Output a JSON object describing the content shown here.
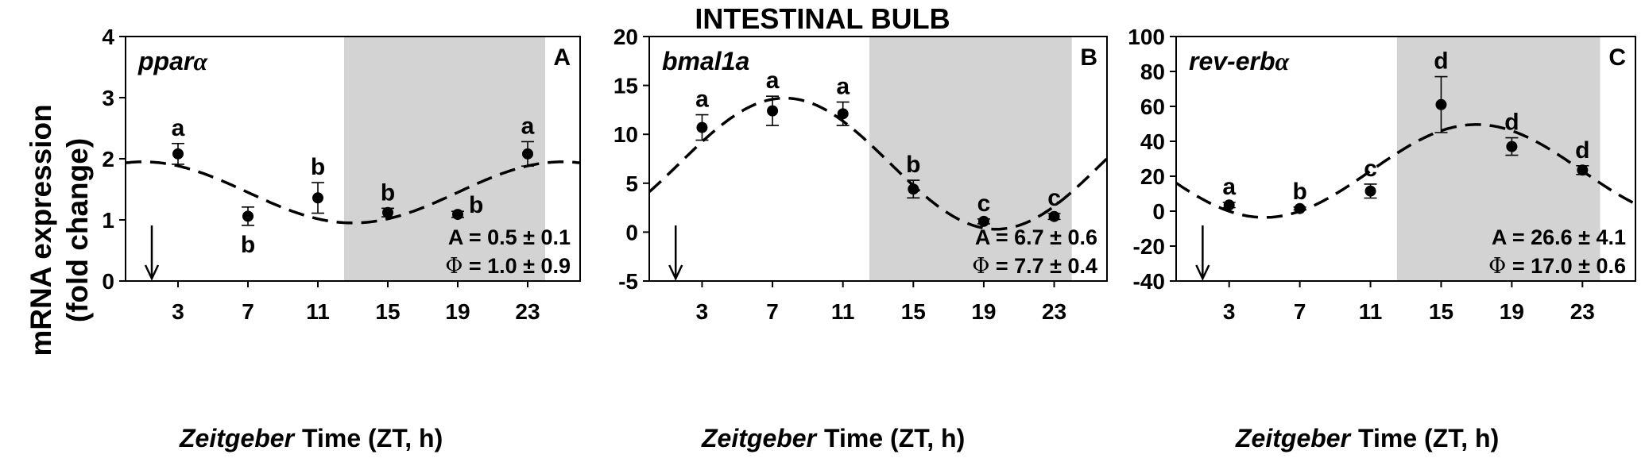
{
  "figure": {
    "suptitle": "INTESTINAL BULB",
    "ylabel_line1": "mRNA  expression",
    "ylabel_line2": "(fold  change)",
    "xlabel_italic": "Zeitgeber",
    "xlabel_rest": "Time   (ZT,   h)",
    "colors": {
      "dark_phase": "#d3d3d3",
      "marker": "#000000",
      "fit_line": "#000000"
    }
  },
  "chart_data": [
    {
      "type": "scatter",
      "panel": "A",
      "gene": "ppar",
      "gene_greek": "α",
      "ylim": [
        0,
        4
      ],
      "yticks": [
        0,
        1,
        2,
        3,
        4
      ],
      "xlim": [
        0,
        26
      ],
      "xticks": [
        3,
        7,
        11,
        15,
        19,
        23
      ],
      "dark_phase": [
        12.5,
        24
      ],
      "arrow_zt": 1.5,
      "points": [
        {
          "x": 3,
          "y": 2.08,
          "err": 0.17,
          "letter": "a",
          "letter_pos": "above"
        },
        {
          "x": 7,
          "y": 1.06,
          "err": 0.15,
          "letter": "b",
          "letter_pos": "below"
        },
        {
          "x": 11,
          "y": 1.36,
          "err": 0.25,
          "letter": "b",
          "letter_pos": "above"
        },
        {
          "x": 15,
          "y": 1.12,
          "err": 0.07,
          "letter": "b",
          "letter_pos": "above"
        },
        {
          "x": 19,
          "y": 1.09,
          "err": 0.05,
          "letter": "b",
          "letter_pos": "right"
        },
        {
          "x": 23,
          "y": 2.08,
          "err": 0.2,
          "letter": "a",
          "letter_pos": "above"
        }
      ],
      "fit": {
        "mesor": 1.45,
        "amplitude": 0.5,
        "acrophase": 1.0,
        "period": 24
      },
      "stat_amp": "A = 0.5 ± 0.1",
      "stat_phase_symbol": "Φ",
      "stat_phase_text": " = 1.0 ± 0.9"
    },
    {
      "type": "scatter",
      "panel": "B",
      "gene": "bmal1a",
      "gene_greek": "",
      "ylim": [
        -5,
        20
      ],
      "yticks": [
        -5,
        0,
        5,
        10,
        15,
        20
      ],
      "xlim": [
        0,
        26
      ],
      "xticks": [
        3,
        7,
        11,
        15,
        19,
        23
      ],
      "dark_phase": [
        12.5,
        24
      ],
      "arrow_zt": 1.5,
      "points": [
        {
          "x": 3,
          "y": 10.7,
          "err": 1.3,
          "letter": "a",
          "letter_pos": "above"
        },
        {
          "x": 7,
          "y": 12.4,
          "err": 1.5,
          "letter": "a",
          "letter_pos": "above"
        },
        {
          "x": 11,
          "y": 12.1,
          "err": 1.2,
          "letter": "a",
          "letter_pos": "above"
        },
        {
          "x": 15,
          "y": 4.4,
          "err": 0.9,
          "letter": "b",
          "letter_pos": "above"
        },
        {
          "x": 19,
          "y": 1.1,
          "err": 0.25,
          "letter": "c",
          "letter_pos": "above"
        },
        {
          "x": 23,
          "y": 1.6,
          "err": 0.3,
          "letter": "c",
          "letter_pos": "above"
        }
      ],
      "fit": {
        "mesor": 7.0,
        "amplitude": 6.7,
        "acrophase": 7.7,
        "period": 24
      },
      "stat_amp": "A = 6.7 ± 0.6",
      "stat_phase_symbol": "Φ",
      "stat_phase_text": " = 7.7 ± 0.4"
    },
    {
      "type": "scatter",
      "panel": "C",
      "gene": "rev-erb",
      "gene_greek": "α",
      "ylim": [
        -40,
        100
      ],
      "yticks": [
        -40,
        -20,
        0,
        20,
        40,
        60,
        80,
        100
      ],
      "xlim": [
        0,
        26
      ],
      "xticks": [
        3,
        7,
        11,
        15,
        19,
        23
      ],
      "dark_phase": [
        12.5,
        24
      ],
      "arrow_zt": 1.5,
      "points": [
        {
          "x": 3,
          "y": 3.5,
          "err": 1.5,
          "letter": "a",
          "letter_pos": "above"
        },
        {
          "x": 7,
          "y": 1.5,
          "err": 0.8,
          "letter": "b",
          "letter_pos": "above"
        },
        {
          "x": 11,
          "y": 11.5,
          "err": 4.0,
          "letter": "c",
          "letter_pos": "above"
        },
        {
          "x": 15,
          "y": 61.0,
          "err": 16.0,
          "letter": "d",
          "letter_pos": "above"
        },
        {
          "x": 19,
          "y": 37.0,
          "err": 5.0,
          "letter": "d",
          "letter_pos": "above"
        },
        {
          "x": 23,
          "y": 23.5,
          "err": 2.5,
          "letter": "d",
          "letter_pos": "above"
        }
      ],
      "fit": {
        "mesor": 23.0,
        "amplitude": 26.6,
        "acrophase": 17.0,
        "period": 24
      },
      "stat_amp": "A = 26.6 ± 4.1",
      "stat_phase_symbol": "Φ",
      "stat_phase_text": " = 17.0 ± 0.6"
    }
  ]
}
